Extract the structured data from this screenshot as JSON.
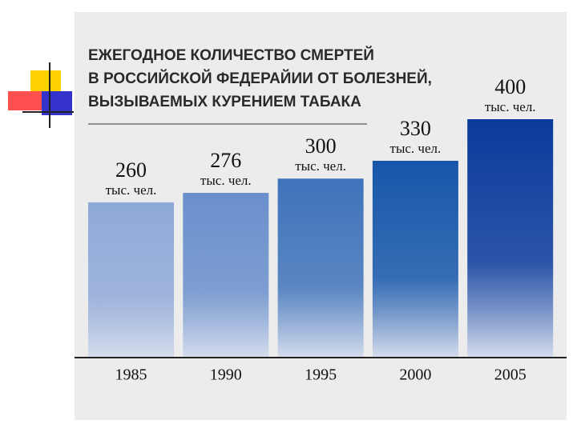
{
  "chart_data": {
    "type": "bar",
    "title": [
      "ЕЖЕГОДНОЕ КОЛИЧЕСТВО СМЕРТЕЙ",
      "В РОССИЙСКОЙ ФЕДЕРАЙИИ ОТ БОЛЕЗНЕЙ,",
      "ВЫЗЫВАЕМЫХ КУРЕНИЕМ ТАБАКА"
    ],
    "categories": [
      "1985",
      "1990",
      "1995",
      "2000",
      "2005"
    ],
    "values": [
      260,
      276,
      300,
      330,
      400
    ],
    "unit": "тыс. чел.",
    "colors": [
      "#8fa9d8",
      "#6a90cc",
      "#3f73ba",
      "#1656aa",
      "#093a9c"
    ]
  }
}
